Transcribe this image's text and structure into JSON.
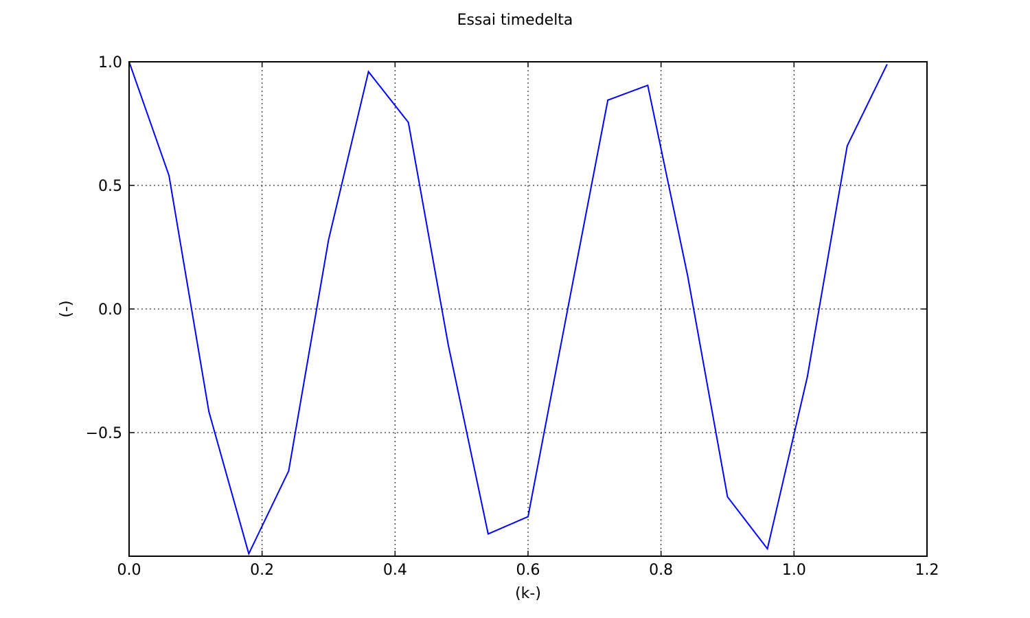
{
  "chart_data": {
    "type": "line",
    "title": "Essai timedelta",
    "xlabel": "(k-)",
    "ylabel": "(-)",
    "xlim": [
      0.0,
      1.2
    ],
    "ylim": [
      -1.0,
      1.0
    ],
    "xticks": [
      0.0,
      0.2,
      0.4,
      0.6,
      0.8,
      1.0,
      1.2
    ],
    "xtick_labels": [
      "0.0",
      "0.2",
      "0.4",
      "0.6",
      "0.8",
      "1.0",
      "1.2"
    ],
    "yticks": [
      -0.5,
      0.0,
      0.5,
      1.0
    ],
    "ytick_labels": [
      "−0.5",
      "0.0",
      "0.5",
      "1.0"
    ],
    "grid": true,
    "series": [
      {
        "color": "#0000ff",
        "x": [
          0.0,
          0.06,
          0.12,
          0.18,
          0.24,
          0.3,
          0.36,
          0.42,
          0.48,
          0.54,
          0.6,
          0.66,
          0.72,
          0.78,
          0.84,
          0.9,
          0.96,
          1.02,
          1.08,
          1.14
        ],
        "y": [
          1.0,
          0.54,
          -0.415,
          -0.99,
          -0.655,
          0.28,
          0.96,
          0.755,
          -0.145,
          -0.91,
          -0.84,
          0.005,
          0.845,
          0.905,
          0.135,
          -0.76,
          -0.97,
          -0.275,
          0.66,
          0.99
        ]
      }
    ]
  }
}
